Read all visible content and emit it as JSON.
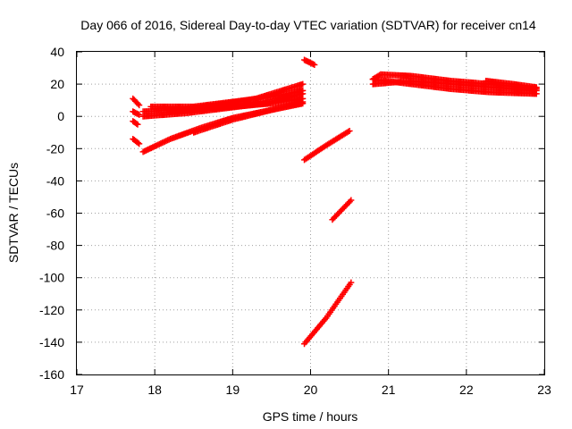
{
  "chart_data": {
    "type": "scatter",
    "title": "Day 066 of 2016, Sidereal Day-to-day VTEC variation (SDTVAR) for receiver cn14",
    "xlabel": "GPS time / hours",
    "ylabel": "SDTVAR / TECUs",
    "xlim": [
      17,
      23
    ],
    "ylim": [
      -160,
      40
    ],
    "xticks": [
      17,
      18,
      19,
      20,
      21,
      22,
      23
    ],
    "yticks": [
      -160,
      -140,
      -120,
      -100,
      -80,
      -60,
      -40,
      -20,
      0,
      20,
      40
    ],
    "grid": true,
    "marker": "+",
    "colors": {
      "series": "#ff0000",
      "grid": "#a0a0a0",
      "axis": "#000000"
    },
    "series": [
      {
        "segments": [
          {
            "x": [
              17.72,
              17.8
            ],
            "y": [
              11,
              7
            ]
          },
          {
            "x": [
              17.72,
              17.8
            ],
            "y": [
              3,
              1
            ]
          },
          {
            "x": [
              17.72,
              17.78
            ],
            "y": [
              -3,
              -5
            ]
          },
          {
            "x": [
              17.72,
              17.8
            ],
            "y": [
              -14,
              -17
            ]
          },
          {
            "x": [
              17.85,
              18.3,
              18.8,
              19.3,
              19.9
            ],
            "y": [
              3,
              4,
              7,
              11,
              20
            ]
          },
          {
            "x": [
              17.85,
              18.4,
              18.9,
              19.4,
              19.9
            ],
            "y": [
              0,
              2,
              5,
              8,
              14
            ]
          },
          {
            "x": [
              17.95,
              18.5,
              19.0,
              19.5,
              19.9
            ],
            "y": [
              6,
              6,
              9,
              12,
              16
            ]
          },
          {
            "x": [
              18.2,
              18.6,
              19.0,
              19.5,
              19.9
            ],
            "y": [
              3,
              4,
              6,
              8,
              11
            ]
          },
          {
            "x": [
              18.5,
              19.0,
              19.5,
              19.9
            ],
            "y": [
              -10,
              -2,
              4,
              9
            ]
          },
          {
            "x": [
              17.85,
              18.2,
              18.6,
              19.0,
              19.5,
              19.9
            ],
            "y": [
              -22,
              -14,
              -7,
              -1,
              4,
              8
            ]
          },
          {
            "x": [
              19.92,
              20.05
            ],
            "y": [
              35,
              32
            ]
          },
          {
            "x": [
              19.92,
              20.2,
              20.5
            ],
            "y": [
              -27,
              -18,
              -9
            ]
          },
          {
            "x": [
              20.28,
              20.52
            ],
            "y": [
              -64,
              -52
            ]
          },
          {
            "x": [
              19.92,
              20.2,
              20.52
            ],
            "y": [
              -141,
              -125,
              -103
            ]
          },
          {
            "x": [
              20.8,
              20.9,
              21.3,
              21.8,
              22.3,
              22.9
            ],
            "y": [
              23,
              26,
              25,
              22,
              20,
              17
            ]
          },
          {
            "x": [
              20.8,
              21.3,
              21.8,
              22.3,
              22.9
            ],
            "y": [
              20,
              22,
              20,
              18,
              16
            ]
          },
          {
            "x": [
              20.8,
              21.3,
              21.8,
              22.3,
              22.9
            ],
            "y": [
              23,
              20,
              17,
              15,
              14
            ]
          },
          {
            "x": [
              22.25,
              22.6,
              22.9
            ],
            "y": [
              22,
              20,
              18
            ]
          }
        ]
      }
    ]
  }
}
